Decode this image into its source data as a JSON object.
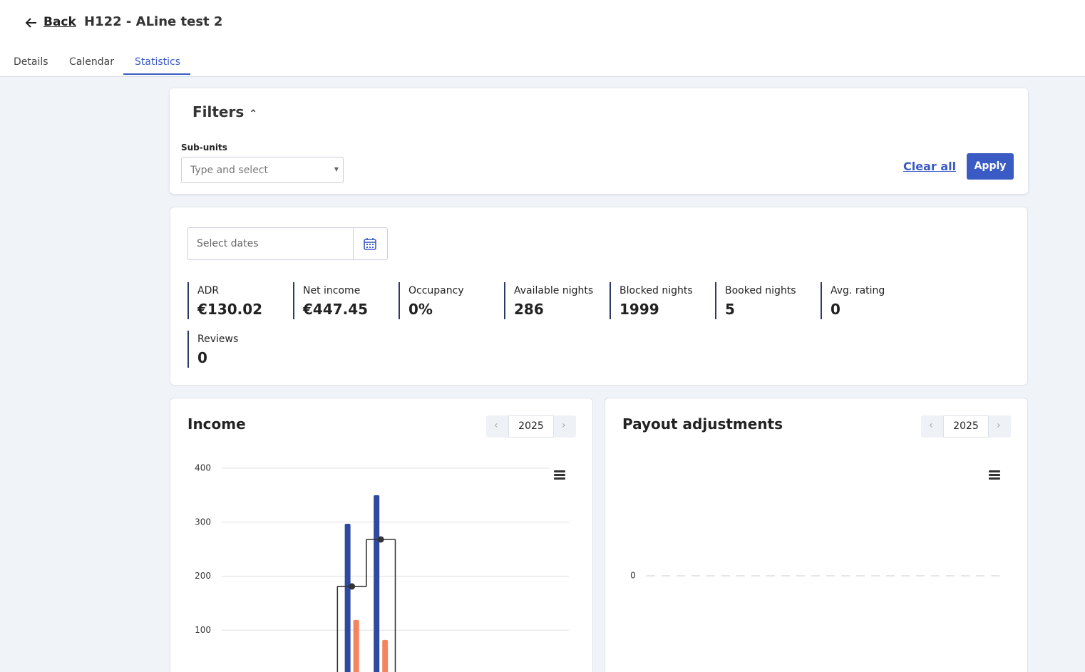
{
  "header": {
    "back": "Back",
    "title": "H122 - ALine test 2"
  },
  "tabs": [
    "Details",
    "Calendar",
    "Statistics"
  ],
  "active_tab": 2,
  "filters": {
    "title": "Filters",
    "sub_units_label": "Sub-units",
    "sub_units_placeholder": "Type and select",
    "clear": "Clear all",
    "apply": "Apply"
  },
  "date_placeholder": "Select dates",
  "stats": [
    {
      "label": "ADR",
      "value": "€130.02"
    },
    {
      "label": "Net income",
      "value": "€447.45"
    },
    {
      "label": "Occupancy",
      "value": "0%"
    },
    {
      "label": "Available nights",
      "value": "286"
    },
    {
      "label": "Blocked nights",
      "value": "1999"
    },
    {
      "label": "Booked nights",
      "value": "5"
    },
    {
      "label": "Avg. rating",
      "value": "0"
    },
    {
      "label": "Reviews",
      "value": "0"
    }
  ],
  "chart_data": [
    {
      "type": "bar",
      "title": "Income",
      "year": "2025",
      "categories": [
        null,
        null,
        null,
        null,
        null,
        null,
        null,
        null,
        null,
        null,
        null,
        null
      ],
      "ylim": [
        0,
        400
      ],
      "yticks": [
        100,
        200,
        300,
        400
      ],
      "grid": true,
      "series": [
        {
          "color": "#2e4a9e",
          "values": [
            0,
            0,
            0,
            0,
            297,
            350,
            0,
            0,
            0,
            0,
            0,
            0
          ]
        },
        {
          "color": "#f4845f",
          "values": [
            0,
            0,
            0,
            0,
            119,
            82,
            0,
            0,
            0,
            0,
            0,
            0
          ]
        },
        {
          "type": "step",
          "color": "#333333",
          "values": [
            0,
            0,
            0,
            0,
            181,
            268,
            0,
            0,
            0,
            0,
            0,
            0
          ]
        }
      ]
    },
    {
      "type": "line",
      "title": "Payout adjustments",
      "year": "2025",
      "yticks": [
        0
      ],
      "grid": true,
      "grid_style": "dashed"
    }
  ]
}
